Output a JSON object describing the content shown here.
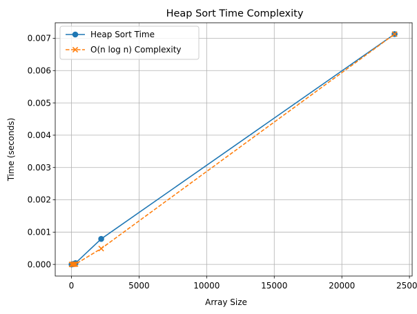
{
  "chart_data": {
    "type": "line",
    "title": "Heap Sort Time Complexity",
    "xlabel": "Array Size",
    "ylabel": "Time (seconds)",
    "xlim": [
      -1200,
      25200
    ],
    "ylim": [
      -0.00036,
      0.00748
    ],
    "xticks": [
      0,
      5000,
      10000,
      15000,
      20000,
      25000
    ],
    "xtick_labels": [
      "0",
      "5000",
      "10000",
      "15000",
      "20000",
      "25000"
    ],
    "yticks": [
      0.0,
      0.001,
      0.002,
      0.003,
      0.004,
      0.005,
      0.006,
      0.007
    ],
    "ytick_labels": [
      "0.000",
      "0.001",
      "0.002",
      "0.003",
      "0.004",
      "0.005",
      "0.006",
      "0.007"
    ],
    "grid": true,
    "legend_position": "top-left",
    "series": [
      {
        "name": "Heap Sort Time",
        "color": "#1f77b4",
        "style": "solid",
        "marker": "circle",
        "x": [
          10,
          100,
          200,
          300,
          2200,
          23900
        ],
        "y": [
          0.0,
          1e-05,
          2e-05,
          4e-05,
          0.00079,
          0.00713
        ]
      },
      {
        "name": "O(n log n) Complexity",
        "color": "#ff7f0e",
        "style": "dashed",
        "marker": "x",
        "x": [
          10,
          100,
          200,
          300,
          2200,
          23900
        ],
        "y": [
          0.0,
          2e-06,
          5e-06,
          9e-06,
          0.00049,
          0.00713
        ]
      }
    ]
  }
}
